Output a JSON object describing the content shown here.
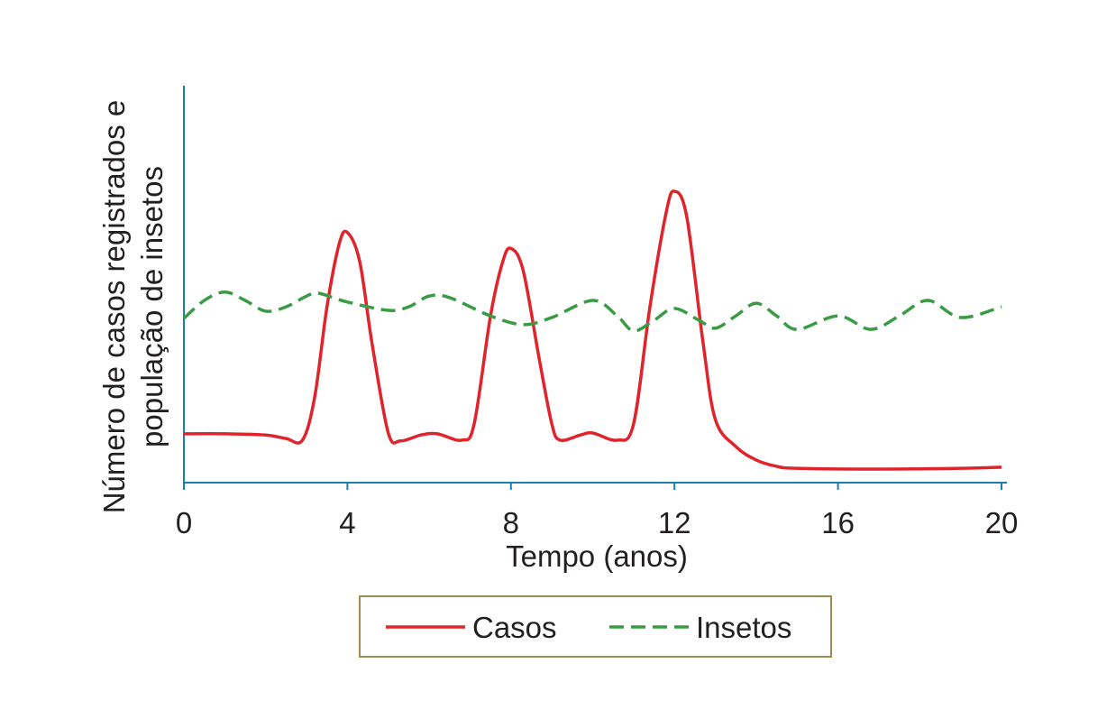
{
  "chart_data": {
    "type": "line",
    "xlabel": "Tempo (anos)",
    "ylabel": [
      "Número de casos registrados e",
      "população de insetos"
    ],
    "xlim": [
      0,
      20
    ],
    "xticks": [
      0,
      4,
      8,
      12,
      16,
      20
    ],
    "ylim": [
      0,
      100
    ],
    "legend": "bottom",
    "series": [
      {
        "name": "Casos",
        "color": "#e0242b",
        "dash": false,
        "x": [
          0,
          1,
          2,
          2.5,
          2.9,
          3.2,
          3.5,
          3.8,
          4.0,
          4.3,
          4.6,
          5.0,
          5.3,
          5.8,
          6.2,
          6.8,
          7.1,
          7.5,
          7.8,
          8.0,
          8.3,
          8.7,
          9.0,
          9.2,
          9.7,
          10.0,
          10.6,
          11.0,
          11.4,
          11.8,
          12.0,
          12.3,
          12.7,
          13.0,
          13.5,
          14.0,
          14.5,
          15,
          17,
          19,
          20
        ],
        "values": [
          12.3,
          12.3,
          12,
          11.1,
          10.7,
          21.6,
          44.3,
          60.2,
          63,
          55.7,
          35.2,
          12.5,
          10.5,
          12,
          12.3,
          10.7,
          14.8,
          42,
          55.7,
          59,
          53.4,
          30.7,
          14.8,
          10.7,
          12,
          12.5,
          10.7,
          14.8,
          44.3,
          68.2,
          73.4,
          67,
          35.2,
          15.9,
          9.1,
          5.7,
          4.1,
          3.6,
          3.4,
          3.6,
          3.9
        ]
      },
      {
        "name": "Insetos",
        "color": "#3a9b45",
        "dash": true,
        "x": [
          0,
          0.5,
          1.0,
          1.5,
          2.0,
          2.5,
          3.0,
          3.3,
          4.0,
          5.0,
          5.5,
          6.0,
          6.5,
          7.5,
          8.3,
          9.0,
          10.0,
          10.6,
          11.0,
          11.5,
          12.0,
          12.6,
          13.0,
          13.5,
          14.0,
          14.5,
          15.0,
          16.0,
          16.8,
          17.5,
          18.2,
          19.0,
          20.0
        ],
        "values": [
          41.4,
          45.9,
          48,
          45.9,
          43.2,
          44.3,
          47,
          47.7,
          45.5,
          43.4,
          44.3,
          47,
          46.6,
          42,
          39.8,
          41.6,
          45.9,
          42,
          38.2,
          40.9,
          43.9,
          40.9,
          38.9,
          42,
          45.2,
          42,
          38.6,
          42,
          38.6,
          42,
          45.9,
          41.6,
          44.3
        ]
      }
    ]
  }
}
